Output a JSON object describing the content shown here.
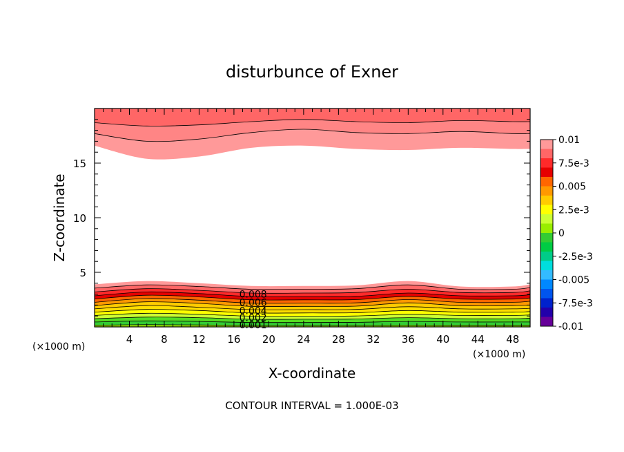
{
  "chart_data": {
    "type": "heatmap",
    "title": "disturbunce of Exner",
    "xlabel": "X-coordinate",
    "ylabel": "Z-coordinate",
    "x_unit_left": "(×1000 m)",
    "x_unit_right": "(×1000 m)",
    "footer": "CONTOUR INTERVAL = 1.000E-03",
    "xlim": [
      0,
      50
    ],
    "ylim": [
      0,
      20
    ],
    "x_ticks": [
      {
        "v": 4,
        "label": "4"
      },
      {
        "v": 8,
        "label": "8"
      },
      {
        "v": 12,
        "label": "12"
      },
      {
        "v": 16,
        "label": "16"
      },
      {
        "v": 20,
        "label": "20"
      },
      {
        "v": 24,
        "label": "24"
      },
      {
        "v": 28,
        "label": "28"
      },
      {
        "v": 32,
        "label": "32"
      },
      {
        "v": 36,
        "label": "36"
      },
      {
        "v": 40,
        "label": "40"
      },
      {
        "v": 44,
        "label": "44"
      },
      {
        "v": 48,
        "label": "48"
      }
    ],
    "y_ticks": [
      {
        "v": 5,
        "label": "5"
      },
      {
        "v": 10,
        "label": "10"
      },
      {
        "v": 15,
        "label": "15"
      }
    ],
    "colorbar": {
      "range": [
        -0.01,
        0.01
      ],
      "tick_labels": [
        "0.01",
        "7.5e-3",
        "0.005",
        "2.5e-3",
        "0",
        "-2.5e-3",
        "-0.005",
        "-7.5e-3",
        "-0.01"
      ],
      "colors": [
        "#ff9999",
        "#ff6666",
        "#ff2a2a",
        "#e60000",
        "#ff6600",
        "#ff9900",
        "#ffcc00",
        "#ffff00",
        "#ccff33",
        "#99ee00",
        "#33cc33",
        "#00cc44",
        "#00cc88",
        "#00dddd",
        "#33bbff",
        "#0088ff",
        "#0055ee",
        "#0022cc",
        "#2200aa",
        "#660099"
      ]
    },
    "contour_labels": [
      "0.008",
      "0.006",
      "0.004",
      "0.002",
      "0.001"
    ],
    "top_band": {
      "x": [
        0,
        6,
        12,
        18,
        24,
        30,
        36,
        42,
        48,
        50
      ],
      "fill_edges": [
        {
          "level": 0.007,
          "color": "#ff9999",
          "z": [
            16.6,
            15.4,
            15.6,
            16.4,
            16.6,
            16.3,
            16.2,
            16.4,
            16.3,
            16.3
          ]
        },
        {
          "level": 0.008,
          "color": "#ff8585",
          "z": [
            17.7,
            17.0,
            17.2,
            17.8,
            18.1,
            17.8,
            17.7,
            17.9,
            17.7,
            17.7
          ]
        },
        {
          "level": 0.009,
          "color": "#ff6666",
          "z": [
            18.7,
            18.4,
            18.5,
            18.8,
            19.0,
            18.8,
            18.7,
            18.9,
            18.8,
            18.8
          ]
        }
      ]
    },
    "bottom_band": {
      "x": [
        0,
        6,
        12,
        18,
        24,
        30,
        36,
        42,
        48,
        50
      ],
      "fill_edges": [
        {
          "level": 0.0005,
          "color": "#99ee00",
          "z": [
            0.15,
            0.2,
            0.18,
            0.12,
            0.12,
            0.12,
            0.15,
            0.14,
            0.14,
            0.14
          ]
        },
        {
          "level": 0.001,
          "color": "#33cc33",
          "z": [
            0.45,
            0.55,
            0.5,
            0.4,
            0.4,
            0.42,
            0.5,
            0.45,
            0.45,
            0.45
          ]
        },
        {
          "level": 0.0015,
          "color": "#55dd22",
          "z": [
            0.75,
            0.9,
            0.85,
            0.7,
            0.7,
            0.72,
            0.85,
            0.75,
            0.75,
            0.8
          ]
        },
        {
          "level": 0.002,
          "color": "#ccff33",
          "z": [
            1.05,
            1.25,
            1.15,
            0.98,
            0.98,
            1.0,
            1.15,
            1.05,
            1.05,
            1.1
          ]
        },
        {
          "level": 0.0025,
          "color": "#ffff00",
          "z": [
            1.35,
            1.6,
            1.5,
            1.28,
            1.28,
            1.3,
            1.5,
            1.35,
            1.35,
            1.4
          ]
        },
        {
          "level": 0.003,
          "color": "#ffdd00",
          "z": [
            1.65,
            1.95,
            1.8,
            1.58,
            1.58,
            1.6,
            1.85,
            1.65,
            1.65,
            1.7
          ]
        },
        {
          "level": 0.004,
          "color": "#ffcc00",
          "z": [
            1.95,
            2.3,
            2.15,
            1.88,
            1.88,
            1.9,
            2.2,
            1.95,
            1.95,
            2.0
          ]
        },
        {
          "level": 0.0045,
          "color": "#ff9900",
          "z": [
            2.25,
            2.6,
            2.45,
            2.18,
            2.18,
            2.2,
            2.5,
            2.25,
            2.25,
            2.35
          ]
        },
        {
          "level": 0.005,
          "color": "#ff6600",
          "z": [
            2.55,
            2.9,
            2.75,
            2.48,
            2.48,
            2.5,
            2.8,
            2.55,
            2.55,
            2.65
          ]
        },
        {
          "level": 0.006,
          "color": "#e60000",
          "z": [
            2.85,
            3.2,
            3.05,
            2.78,
            2.78,
            2.8,
            3.1,
            2.85,
            2.85,
            2.95
          ]
        },
        {
          "level": 0.007,
          "color": "#ff2a2a",
          "z": [
            3.2,
            3.5,
            3.35,
            3.1,
            3.1,
            3.15,
            3.45,
            3.15,
            3.15,
            3.3
          ]
        },
        {
          "level": 0.008,
          "color": "#ff6666",
          "z": [
            3.55,
            3.85,
            3.7,
            3.45,
            3.45,
            3.5,
            3.85,
            3.45,
            3.45,
            3.6
          ]
        },
        {
          "level": 0.009,
          "color": "#ff9999",
          "z": [
            3.9,
            4.2,
            4.0,
            3.75,
            3.75,
            3.8,
            4.2,
            3.7,
            3.7,
            3.9
          ]
        }
      ]
    }
  }
}
